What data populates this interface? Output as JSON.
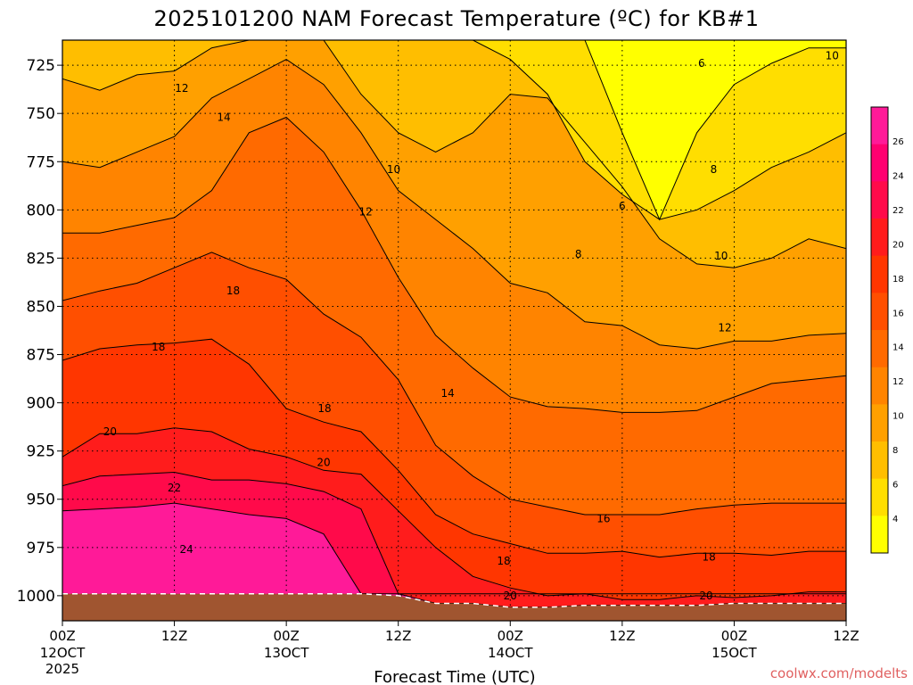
{
  "chart_data": {
    "type": "contour",
    "title": "2025101200 NAM Forecast Temperature (ºC) for KB#1",
    "xlabel": "Forecast Time (UTC)",
    "ylabel": "",
    "credit": "coolwx.com/modelts",
    "x_ticks": [
      {
        "hour": 0,
        "label": "00Z",
        "sub": "12OCT",
        "sub2": "2025"
      },
      {
        "hour": 12,
        "label": "12Z",
        "sub": "",
        "sub2": ""
      },
      {
        "hour": 24,
        "label": "00Z",
        "sub": "13OCT",
        "sub2": ""
      },
      {
        "hour": 36,
        "label": "12Z",
        "sub": "",
        "sub2": ""
      },
      {
        "hour": 48,
        "label": "00Z",
        "sub": "14OCT",
        "sub2": ""
      },
      {
        "hour": 60,
        "label": "12Z",
        "sub": "",
        "sub2": ""
      },
      {
        "hour": 72,
        "label": "00Z",
        "sub": "15OCT",
        "sub2": ""
      },
      {
        "hour": 84,
        "label": "12Z",
        "sub": "",
        "sub2": ""
      }
    ],
    "x_range_hours": [
      0,
      84
    ],
    "y_ticks": [
      "725",
      "750",
      "775",
      "800",
      "825",
      "850",
      "875",
      "900",
      "925",
      "950",
      "975",
      "1000"
    ],
    "y_range_hpa": [
      712,
      1013
    ],
    "surface_pressure_hpa": {
      "hours": [
        0,
        4,
        8,
        12,
        16,
        20,
        24,
        28,
        32,
        36,
        40,
        44,
        48,
        52,
        56,
        60,
        64,
        68,
        72,
        76,
        80,
        84
      ],
      "values": [
        999,
        999,
        999,
        999,
        999,
        999,
        999,
        999,
        999,
        1000,
        1004,
        1004,
        1006,
        1006,
        1005,
        1005,
        1005,
        1005,
        1004,
        1004,
        1004,
        1004
      ]
    },
    "contour_levels": [
      4,
      6,
      8,
      10,
      12,
      14,
      16,
      18,
      20,
      22,
      24,
      26
    ],
    "colorbar_ticks": [
      "26",
      "24",
      "22",
      "20",
      "18",
      "16",
      "14",
      "12",
      "10",
      "8",
      "6",
      "4"
    ],
    "colors": [
      "#ffff00",
      "#ffde00",
      "#ffbe00",
      "#ffa000",
      "#ff8400",
      "#ff6a00",
      "#ff4f00",
      "#ff3600",
      "#ff1c1c",
      "#ff0a4a",
      "#ff0070",
      "#ff1a98"
    ],
    "isotherms": [
      {
        "level": 24,
        "pressures": [
          956,
          955,
          954,
          952,
          955,
          958,
          960,
          968,
          999,
          999,
          999,
          999,
          999,
          999,
          999,
          999,
          999,
          999,
          999,
          999,
          999,
          999
        ]
      },
      {
        "level": 22,
        "pressures": [
          943,
          938,
          937,
          936,
          940,
          940,
          942,
          946,
          955,
          999,
          1004,
          1004,
          1006,
          1006,
          1005,
          1005,
          1005,
          1005,
          1004,
          1004,
          1004,
          1004
        ]
      },
      {
        "level": 20,
        "pressures": [
          928,
          916,
          916,
          913,
          915,
          924,
          928,
          935,
          937,
          956,
          975,
          990,
          996,
          1000,
          999,
          1002,
          1002,
          1000,
          1001,
          1000,
          998,
          998
        ]
      },
      {
        "level": 18,
        "pressures": [
          878,
          872,
          870,
          869,
          867,
          880,
          903,
          910,
          915,
          935,
          958,
          968,
          973,
          978,
          978,
          977,
          980,
          978,
          978,
          979,
          977,
          977
        ]
      },
      {
        "level": 16,
        "pressures": [
          847,
          842,
          838,
          830,
          822,
          830,
          836,
          854,
          866,
          888,
          922,
          938,
          950,
          954,
          958,
          958,
          958,
          955,
          953,
          952,
          952,
          952
        ]
      },
      {
        "level": 14,
        "pressures": [
          812,
          812,
          808,
          804,
          790,
          760,
          752,
          770,
          800,
          835,
          865,
          882,
          897,
          902,
          903,
          905,
          905,
          904,
          897,
          890,
          888,
          886
        ]
      },
      {
        "level": 12,
        "pressures": [
          775,
          778,
          770,
          762,
          742,
          732,
          722,
          735,
          760,
          790,
          805,
          820,
          838,
          843,
          858,
          860,
          870,
          872,
          868,
          868,
          865,
          864
        ]
      },
      {
        "level": 10,
        "pressures": [
          732,
          738,
          730,
          728,
          716,
          712,
          712,
          712,
          740,
          760,
          770,
          760,
          740,
          742,
          765,
          788,
          815,
          828,
          830,
          825,
          815,
          820
        ]
      },
      {
        "level": 8,
        "pressures": [
          712,
          712,
          712,
          712,
          712,
          712,
          712,
          712,
          712,
          712,
          712,
          712,
          722,
          740,
          775,
          792,
          805,
          800,
          790,
          778,
          770,
          760
        ]
      },
      {
        "level": 6,
        "pressures": [
          712,
          712,
          712,
          712,
          712,
          712,
          712,
          712,
          712,
          712,
          712,
          712,
          712,
          712,
          712,
          760,
          805,
          760,
          735,
          724,
          716,
          716
        ]
      },
      {
        "level": 4,
        "pressures": [
          712,
          712,
          712,
          712,
          712,
          712,
          712,
          712,
          712,
          712,
          712,
          712,
          712,
          712,
          712,
          712,
          712,
          712,
          712,
          712,
          712,
          712
        ]
      }
    ],
    "contour_labels": [
      {
        "text": "12",
        "hour": 12.8,
        "p": 737
      },
      {
        "text": "14",
        "hour": 17.3,
        "p": 752
      },
      {
        "text": "10",
        "hour": 35.5,
        "p": 779
      },
      {
        "text": "12",
        "hour": 32.5,
        "p": 801
      },
      {
        "text": "18",
        "hour": 18.3,
        "p": 842
      },
      {
        "text": "18",
        "hour": 10.3,
        "p": 871
      },
      {
        "text": "14",
        "hour": 41.3,
        "p": 895
      },
      {
        "text": "18",
        "hour": 28.1,
        "p": 903
      },
      {
        "text": "20",
        "hour": 5.1,
        "p": 915
      },
      {
        "text": "20",
        "hour": 28.0,
        "p": 931
      },
      {
        "text": "22",
        "hour": 12.0,
        "p": 944
      },
      {
        "text": "16",
        "hour": 58.0,
        "p": 960
      },
      {
        "text": "24",
        "hour": 13.3,
        "p": 976
      },
      {
        "text": "18",
        "hour": 47.3,
        "p": 982
      },
      {
        "text": "18",
        "hour": 69.3,
        "p": 980
      },
      {
        "text": "20",
        "hour": 48.0,
        "p": 1000
      },
      {
        "text": "20",
        "hour": 69.0,
        "p": 1000
      },
      {
        "text": "6",
        "hour": 68.5,
        "p": 724
      },
      {
        "text": "10",
        "hour": 82.5,
        "p": 720
      },
      {
        "text": "8",
        "hour": 69.8,
        "p": 779
      },
      {
        "text": "6",
        "hour": 60.0,
        "p": 798
      },
      {
        "text": "8",
        "hour": 55.3,
        "p": 823
      },
      {
        "text": "10",
        "hour": 70.6,
        "p": 824
      },
      {
        "text": "12",
        "hour": 71.0,
        "p": 861
      }
    ]
  }
}
